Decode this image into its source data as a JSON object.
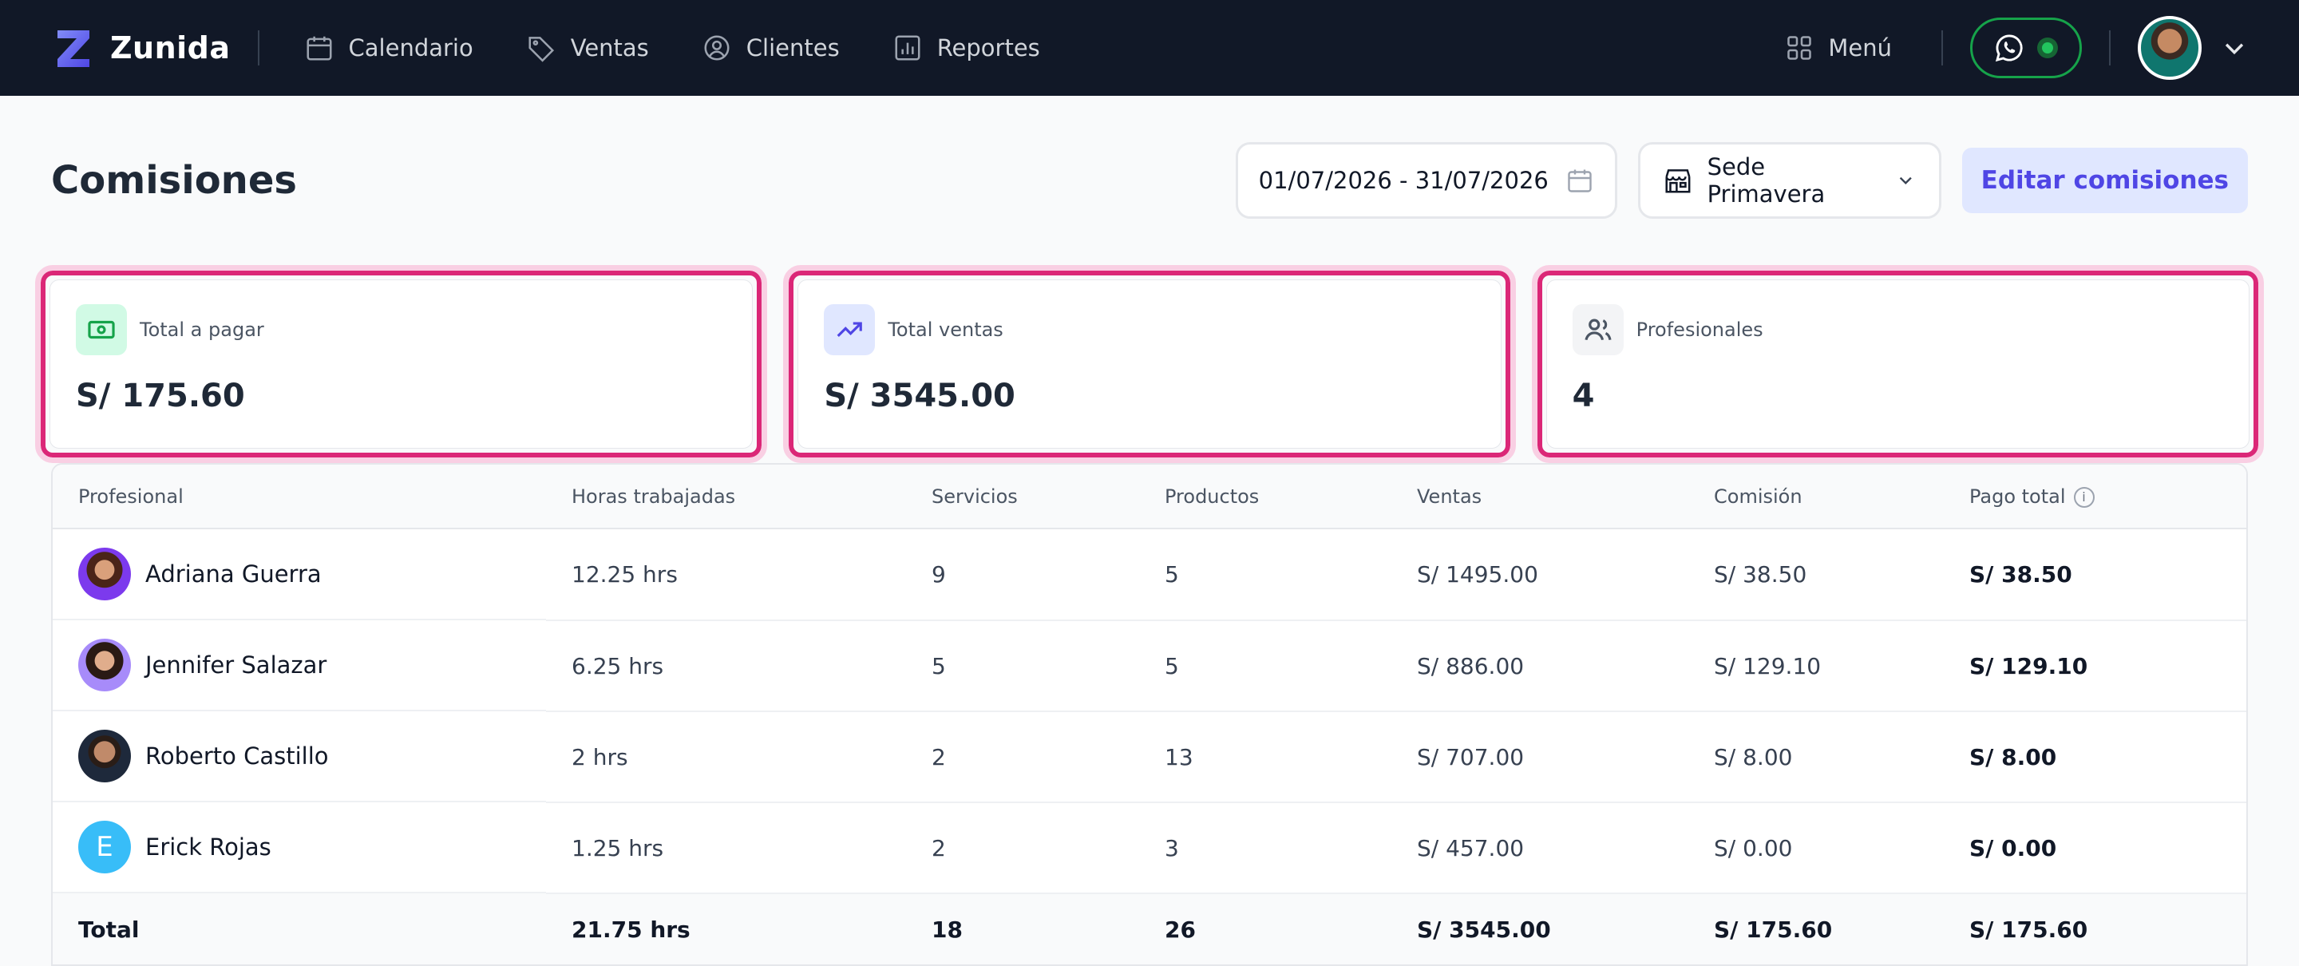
{
  "app": {
    "name": "Zunida"
  },
  "nav": {
    "items": [
      {
        "label": "Calendario",
        "icon": "calendar-icon"
      },
      {
        "label": "Ventas",
        "icon": "tag-icon"
      },
      {
        "label": "Clientes",
        "icon": "user-circle-icon"
      },
      {
        "label": "Reportes",
        "icon": "bar-chart-icon"
      }
    ],
    "menu_label": "Menú"
  },
  "page": {
    "title": "Comisiones",
    "date_range": "01/07/2026 - 31/07/2026",
    "branch": "Sede Primavera",
    "edit_button": "Editar comisiones"
  },
  "stats": [
    {
      "label": "Total a pagar",
      "value": "S/ 175.60",
      "icon": "cash-icon",
      "accent": "#16a34a"
    },
    {
      "label": "Total ventas",
      "value": "S/ 3545.00",
      "icon": "trending-up-icon",
      "accent": "#4f46e5"
    },
    {
      "label": "Profesionales",
      "value": "4",
      "icon": "users-icon",
      "accent": "#4b5563"
    }
  ],
  "table": {
    "headers": [
      "Profesional",
      "Horas trabajadas",
      "Servicios",
      "Productos",
      "Ventas",
      "Comisión",
      "Pago total"
    ],
    "rows": [
      {
        "name": "Adriana Guerra",
        "hours": "12.25 hrs",
        "services": "9",
        "products": "5",
        "sales": "S/ 1495.00",
        "commission": "S/ 38.50",
        "total": "S/ 38.50"
      },
      {
        "name": "Jennifer Salazar",
        "hours": "6.25 hrs",
        "services": "5",
        "products": "5",
        "sales": "S/ 886.00",
        "commission": "S/ 129.10",
        "total": "S/ 129.10"
      },
      {
        "name": "Roberto Castillo",
        "hours": "2 hrs",
        "services": "2",
        "products": "13",
        "sales": "S/ 707.00",
        "commission": "S/ 8.00",
        "total": "S/ 8.00"
      },
      {
        "name": "Erick Rojas",
        "initial": "E",
        "hours": "1.25 hrs",
        "services": "2",
        "products": "3",
        "sales": "S/ 457.00",
        "commission": "S/ 0.00",
        "total": "S/ 0.00"
      }
    ],
    "total_row": {
      "label": "Total",
      "hours": "21.75 hrs",
      "services": "18",
      "products": "26",
      "sales": "S/ 3545.00",
      "commission": "S/ 175.60",
      "total": "S/ 175.60"
    }
  },
  "colors": {
    "nav_bg": "#111827",
    "highlight": "#db2777",
    "accent": "#4f46e5",
    "whatsapp": "#16a34a"
  }
}
